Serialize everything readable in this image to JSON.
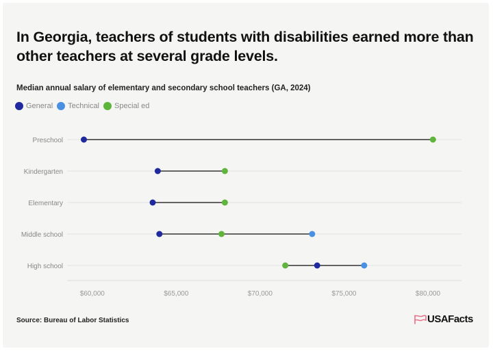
{
  "title": "In Georgia, teachers of students with disabilities earned more than other teachers at several grade levels.",
  "subtitle": "Median annual salary of elementary and secondary school teachers (GA, 2024)",
  "legend": [
    {
      "label": "General",
      "color": "#1f2a9e"
    },
    {
      "label": "Technical",
      "color": "#4a90e2"
    },
    {
      "label": "Special ed",
      "color": "#5fb53c"
    }
  ],
  "source": "Source: Bureau of Labor Statistics",
  "brand": {
    "name": "USAFacts",
    "icon": "usafacts-flag-logo",
    "icon_color": "#e8708a"
  },
  "chart_data": {
    "type": "dot",
    "categories": [
      "Preschool",
      "Kindergarten",
      "Elementary",
      "Middle school",
      "High school"
    ],
    "series": [
      {
        "name": "General",
        "color": "#1f2a9e",
        "values": [
          59500,
          63900,
          63600,
          64000,
          73400
        ]
      },
      {
        "name": "Technical",
        "color": "#4a90e2",
        "values": [
          null,
          null,
          null,
          73100,
          76200
        ]
      },
      {
        "name": "Special ed",
        "color": "#5fb53c",
        "values": [
          80300,
          67900,
          67900,
          67700,
          71500
        ]
      }
    ],
    "x_ticks": [
      60000,
      65000,
      70000,
      75000,
      80000
    ],
    "x_tick_labels": [
      "$60,000",
      "$65,000",
      "$70,000",
      "$75,000",
      "$80,000"
    ],
    "xlim": [
      58500,
      82000
    ],
    "xlabel": "",
    "ylabel": "",
    "grid": true
  }
}
